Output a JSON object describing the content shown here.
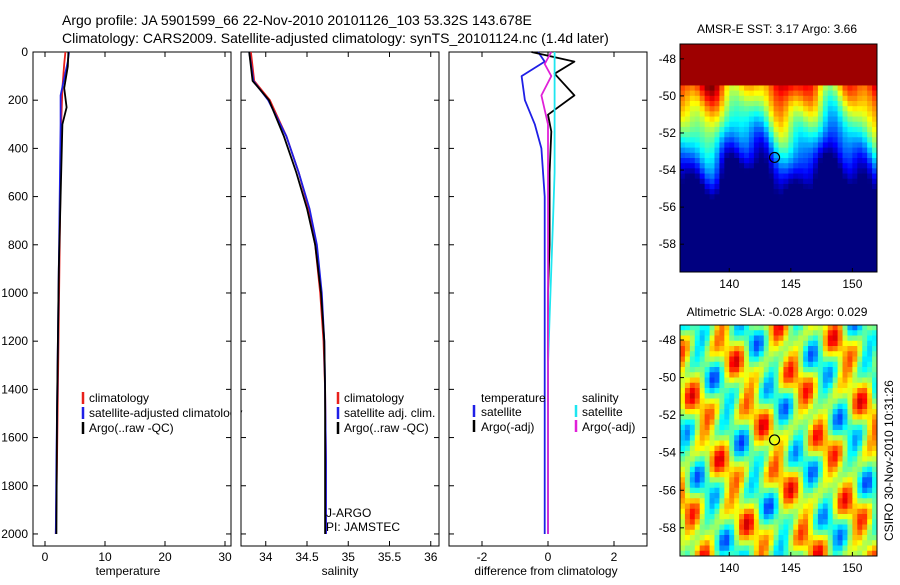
{
  "figure": {
    "title_line1": "Argo profile: JA 5901599_66 22-Nov-2010 20101126_103 53.32S 143.678E",
    "title_line2": "Climatology: CARS2009. Satellite-adjusted climatology: synTS_20101124.nc (1.4d later)",
    "side_stamp": "CSIRO 30-Nov-2010 10:31:26"
  },
  "colors": {
    "climatology": "#e8201c",
    "satellite": "#1f1fe6",
    "argo": "#000000",
    "cyan": "#1ee6f0",
    "magenta": "#e020d8"
  },
  "chart_data": [
    {
      "id": "temperature",
      "type": "line",
      "xlabel": "temperature",
      "xlim": [
        -2,
        31
      ],
      "ylim": [
        0,
        2050
      ],
      "y_reversed": true,
      "xticks": [
        0,
        10,
        20,
        30
      ],
      "yticks": [
        0,
        200,
        400,
        600,
        800,
        1000,
        1200,
        1400,
        1600,
        1800,
        2000
      ],
      "series": [
        {
          "name": "climatology",
          "color": "#e8201c",
          "x": [
            3.4,
            3.2,
            2.9,
            2.7,
            2.6,
            2.5,
            2.4,
            2.3,
            2.2,
            2.1,
            2.0,
            1.8
          ],
          "y": [
            0,
            50,
            150,
            300,
            500,
            700,
            900,
            1100,
            1300,
            1500,
            1700,
            2000
          ]
        },
        {
          "name": "satellite-adjusted climatology",
          "color": "#1f1fe6",
          "x": [
            4.0,
            3.8,
            2.6,
            2.6,
            2.5,
            2.4,
            2.3,
            2.2,
            2.1,
            2.0,
            1.9,
            1.8
          ],
          "y": [
            0,
            40,
            180,
            300,
            500,
            700,
            900,
            1100,
            1300,
            1500,
            1700,
            2000
          ]
        },
        {
          "name": "Argo(..raw -QC)",
          "color": "#000000",
          "x": [
            3.9,
            3.8,
            3.2,
            3.6,
            2.9,
            2.7,
            2.5,
            2.3,
            2.2,
            2.1,
            2.0,
            1.9
          ],
          "y": [
            0,
            60,
            150,
            230,
            300,
            500,
            700,
            900,
            1100,
            1300,
            1500,
            2000
          ]
        }
      ],
      "legend": [
        "climatology",
        "satellite-adjusted climatology",
        "Argo(..raw -QC)"
      ]
    },
    {
      "id": "salinity",
      "type": "line",
      "xlabel": "salinity",
      "xlim": [
        33.7,
        36.1
      ],
      "ylim": [
        0,
        2050
      ],
      "y_reversed": true,
      "xticks": [
        34,
        34.5,
        35,
        35.5,
        36
      ],
      "series": [
        {
          "name": "climatology",
          "color": "#e8201c",
          "x": [
            33.82,
            33.86,
            34.05,
            34.25,
            34.4,
            34.52,
            34.6,
            34.66,
            34.7,
            34.72,
            34.73,
            34.73
          ],
          "y": [
            0,
            120,
            200,
            350,
            500,
            650,
            800,
            1000,
            1200,
            1400,
            1700,
            2000
          ]
        },
        {
          "name": "satellite adj. clim.",
          "color": "#1f1fe6",
          "x": [
            33.8,
            33.85,
            34.03,
            34.25,
            34.4,
            34.53,
            34.62,
            34.68,
            34.71,
            34.72,
            34.73,
            34.73
          ],
          "y": [
            0,
            120,
            200,
            350,
            500,
            650,
            800,
            1000,
            1200,
            1400,
            1700,
            2000
          ]
        },
        {
          "name": "Argo(..raw -QC)",
          "color": "#000000",
          "x": [
            33.8,
            33.84,
            34.04,
            34.22,
            34.37,
            34.5,
            34.6,
            34.67,
            34.71,
            34.72,
            34.72,
            34.72
          ],
          "y": [
            0,
            120,
            200,
            350,
            500,
            650,
            800,
            1000,
            1200,
            1400,
            1700,
            2000
          ]
        }
      ],
      "legend": [
        "climatology",
        "satellite adj. clim.",
        "Argo(..raw -QC)"
      ],
      "annotations": [
        "J-ARGO",
        "PI: JAMSTEC"
      ]
    },
    {
      "id": "difference",
      "type": "line",
      "xlabel": "difference from climatology",
      "xlim": [
        -3.0,
        3.0
      ],
      "ylim": [
        0,
        2050
      ],
      "y_reversed": true,
      "xticks": [
        -2,
        0,
        2
      ],
      "series": [
        {
          "name": "temperature satellite",
          "color": "#1f1fe6",
          "x": [
            -0.3,
            -0.1,
            -0.8,
            -0.7,
            -0.4,
            -0.2,
            -0.1,
            -0.1,
            -0.1,
            -0.1,
            -0.1,
            -0.1
          ],
          "y": [
            0,
            40,
            100,
            200,
            300,
            400,
            600,
            800,
            1000,
            1200,
            1500,
            2000
          ]
        },
        {
          "name": "temperature Argo(-adj)",
          "color": "#000000",
          "x": [
            -0.5,
            0.8,
            0.2,
            0.8,
            0.0,
            0.1,
            0.05,
            0.05,
            0.0,
            0.0,
            0.0,
            0.0
          ],
          "y": [
            0,
            40,
            90,
            180,
            260,
            330,
            500,
            800,
            1000,
            1200,
            1500,
            2000
          ]
        },
        {
          "name": "salinity satellite",
          "color": "#1ee6f0",
          "x": [
            0.2,
            0.2,
            0.2,
            0.2,
            0.2,
            0.2,
            0.15,
            0.1,
            0.05,
            0.0,
            0.0,
            0.0
          ],
          "y": [
            0,
            60,
            200,
            300,
            400,
            500,
            700,
            900,
            1100,
            1300,
            1600,
            2000
          ]
        },
        {
          "name": "salinity Argo(-adj)",
          "color": "#e020d8",
          "x": [
            0.1,
            -0.1,
            0.1,
            -0.2,
            0.0,
            0.0,
            0.0,
            0.0,
            0.0,
            0.0,
            0.0,
            0.0
          ],
          "y": [
            0,
            50,
            100,
            180,
            300,
            400,
            600,
            800,
            1000,
            1200,
            1500,
            2000
          ]
        }
      ],
      "legend_groups": [
        {
          "heading": "temperature",
          "entries": [
            "satellite",
            "Argo(-adj)"
          ]
        },
        {
          "heading": "salinity",
          "entries": [
            "satellite",
            "Argo(-adj)"
          ]
        }
      ]
    },
    {
      "id": "sst_map",
      "type": "heatmap",
      "title": "AMSR-E SST: 3.17 Argo: 3.66",
      "xlim": [
        136,
        152
      ],
      "ylim": [
        -59.5,
        -47.2
      ],
      "xticks": [
        140,
        145,
        150
      ],
      "yticks": [
        -48,
        -50,
        -52,
        -54,
        -56,
        -58
      ],
      "marker": {
        "lon": 143.678,
        "lat": -53.32
      }
    },
    {
      "id": "sla_map",
      "type": "heatmap",
      "title": "Altimetric SLA: -0.028 Argo: 0.029",
      "xlim": [
        136,
        152
      ],
      "ylim": [
        -59.5,
        -47.2
      ],
      "xticks": [
        140,
        145,
        150
      ],
      "yticks": [
        -48,
        -50,
        -52,
        -54,
        -56,
        -58
      ],
      "marker": {
        "lon": 143.678,
        "lat": -53.32
      }
    }
  ]
}
